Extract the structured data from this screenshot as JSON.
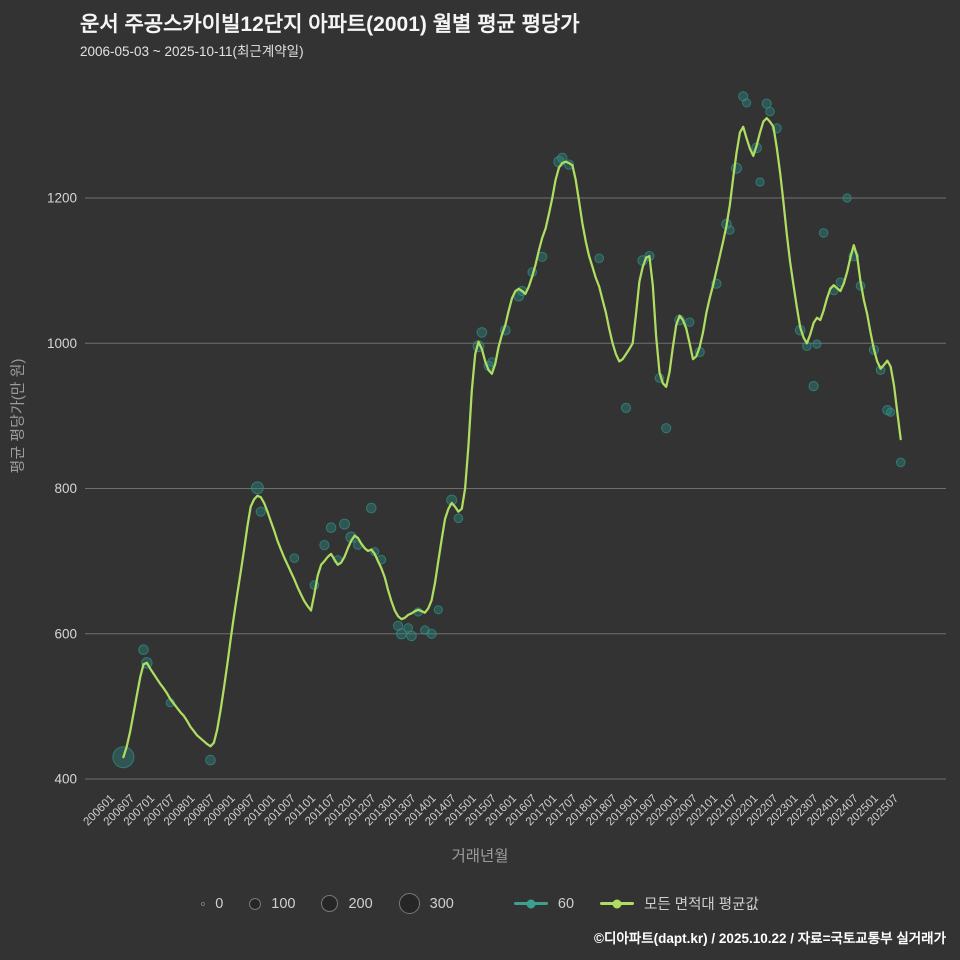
{
  "header": {
    "title": "운서 주공스카이빌12단지 아파트(2001) 월별 평균 평당가",
    "subtitle": "2006-05-03 ~ 2025-10-11(최근계약일)"
  },
  "footer": {
    "credit": "©디아파트(dapt.kr) / 2025.10.22 / 자료=국토교통부 실거래가"
  },
  "legend": {
    "size_items": [
      {
        "label": "0"
      },
      {
        "label": "100"
      },
      {
        "label": "200"
      },
      {
        "label": "300"
      }
    ],
    "series_items": [
      {
        "label": "60",
        "color": "#3aa08f"
      },
      {
        "label": "모든 면적대 평균값",
        "color": "#afdd61"
      }
    ]
  },
  "chart_data": {
    "type": "line",
    "title": "운서 주공스카이빌12단지 아파트(2001) 월별 평균 평당가",
    "subtitle": "2006-05-03 ~ 2025-10-11(최근계약일)",
    "x_axis": {
      "label": "거래년월",
      "ticks": [
        "200601",
        "200607",
        "200701",
        "200707",
        "200801",
        "200807",
        "200901",
        "200907",
        "201001",
        "201007",
        "201101",
        "201107",
        "201201",
        "201207",
        "201301",
        "201307",
        "201401",
        "201407",
        "201501",
        "201507",
        "201601",
        "201607",
        "201701",
        "201707",
        "201801",
        "201807",
        "201901",
        "201907",
        "202001",
        "202007",
        "202101",
        "202107",
        "202201",
        "202207",
        "202301",
        "202307",
        "202401",
        "202407",
        "202501",
        "202507"
      ]
    },
    "y_axis": {
      "label": "평균 평당가(만 원)",
      "ticks": [
        400,
        600,
        800,
        1000,
        1200
      ],
      "range": [
        400,
        1360
      ]
    },
    "size_legend_values": [
      0,
      100,
      200,
      300
    ],
    "series": [
      {
        "name": "모든 면적대 평균값",
        "type": "line",
        "color": "#afdd61",
        "start_month": "200605",
        "values": [
          430,
          445,
          465,
          490,
          515,
          540,
          558,
          560,
          552,
          545,
          538,
          531,
          525,
          518,
          510,
          504,
          498,
          492,
          487,
          480,
          472,
          466,
          460,
          456,
          452,
          448,
          445,
          450,
          468,
          495,
          525,
          558,
          592,
          625,
          655,
          685,
          715,
          748,
          775,
          785,
          790,
          788,
          780,
          768,
          755,
          742,
          728,
          716,
          705,
          695,
          685,
          675,
          664,
          654,
          645,
          638,
          632,
          655,
          680,
          695,
          700,
          706,
          710,
          702,
          695,
          698,
          706,
          718,
          728,
          735,
          732,
          724,
          718,
          714,
          716,
          710,
          700,
          690,
          678,
          660,
          645,
          632,
          624,
          620,
          622,
          626,
          628,
          631,
          633,
          631,
          629,
          635,
          646,
          670,
          700,
          730,
          758,
          772,
          780,
          775,
          768,
          772,
          800,
          860,
          935,
          985,
          1002,
          992,
          975,
          963,
          958,
          972,
          995,
          1012,
          1025,
          1045,
          1062,
          1072,
          1075,
          1072,
          1068,
          1078,
          1092,
          1108,
          1128,
          1145,
          1158,
          1178,
          1200,
          1225,
          1242,
          1248,
          1250,
          1248,
          1245,
          1225,
          1195,
          1165,
          1140,
          1120,
          1105,
          1090,
          1078,
          1060,
          1042,
          1020,
          1000,
          985,
          975,
          978,
          985,
          992,
          1000,
          1040,
          1085,
          1105,
          1118,
          1120,
          1080,
          1010,
          960,
          945,
          940,
          960,
          995,
          1025,
          1038,
          1032,
          1020,
          1000,
          978,
          982,
          995,
          1015,
          1042,
          1062,
          1080,
          1100,
          1120,
          1140,
          1162,
          1190,
          1228,
          1262,
          1290,
          1298,
          1282,
          1268,
          1258,
          1272,
          1290,
          1305,
          1310,
          1305,
          1298,
          1270,
          1235,
          1195,
          1150,
          1112,
          1080,
          1050,
          1022,
          1008,
          1000,
          1012,
          1028,
          1035,
          1032,
          1045,
          1062,
          1075,
          1080,
          1076,
          1072,
          1082,
          1098,
          1118,
          1135,
          1120,
          1085,
          1060,
          1040,
          1015,
          992,
          975,
          965,
          970,
          976,
          968,
          942,
          905,
          868
        ]
      },
      {
        "name": "60",
        "type": "scatter",
        "color": "#2f8f85",
        "points": [
          [
            "200605",
            430,
            300
          ],
          [
            "200611",
            578,
            30
          ],
          [
            "200612",
            560,
            40
          ],
          [
            "200707",
            505,
            15
          ],
          [
            "200807",
            426,
            30
          ],
          [
            "200909",
            801,
            60
          ],
          [
            "200910",
            768,
            25
          ],
          [
            "201008",
            704,
            20
          ],
          [
            "201102",
            667,
            20
          ],
          [
            "201105",
            722,
            25
          ],
          [
            "201107",
            746,
            30
          ],
          [
            "201109",
            702,
            15
          ],
          [
            "201111",
            751,
            35
          ],
          [
            "201201",
            733,
            40
          ],
          [
            "201203",
            722,
            20
          ],
          [
            "201207",
            773,
            30
          ],
          [
            "201208",
            713,
            15
          ],
          [
            "201210",
            702,
            20
          ],
          [
            "201303",
            611,
            25
          ],
          [
            "201304",
            600,
            35
          ],
          [
            "201306",
            608,
            20
          ],
          [
            "201307",
            597,
            30
          ],
          [
            "201309",
            630,
            15
          ],
          [
            "201311",
            605,
            20
          ],
          [
            "201401",
            600,
            25
          ],
          [
            "201403",
            633,
            15
          ],
          [
            "201407",
            784,
            35
          ],
          [
            "201409",
            759,
            20
          ],
          [
            "201503",
            996,
            45
          ],
          [
            "201504",
            1015,
            30
          ],
          [
            "201506",
            969,
            25
          ],
          [
            "201507",
            974,
            20
          ],
          [
            "201511",
            1018,
            30
          ],
          [
            "201603",
            1065,
            35
          ],
          [
            "201604",
            1072,
            25
          ],
          [
            "201607",
            1098,
            20
          ],
          [
            "201610",
            1119,
            25
          ],
          [
            "201703",
            1250,
            40
          ],
          [
            "201704",
            1255,
            30
          ],
          [
            "201706",
            1246,
            25
          ],
          [
            "201803",
            1117,
            20
          ],
          [
            "201811",
            911,
            25
          ],
          [
            "201904",
            1114,
            30
          ],
          [
            "201906",
            1120,
            25
          ],
          [
            "201909",
            952,
            20
          ],
          [
            "201911",
            883,
            25
          ],
          [
            "202003",
            1032,
            30
          ],
          [
            "202006",
            1029,
            20
          ],
          [
            "202009",
            988,
            25
          ],
          [
            "202102",
            1082,
            25
          ],
          [
            "202105",
            1164,
            30
          ],
          [
            "202106",
            1156,
            20
          ],
          [
            "202108",
            1241,
            35
          ],
          [
            "202110",
            1340,
            25
          ],
          [
            "202111",
            1331,
            15
          ],
          [
            "202202",
            1269,
            30
          ],
          [
            "202203",
            1222,
            15
          ],
          [
            "202205",
            1330,
            25
          ],
          [
            "202206",
            1319,
            20
          ],
          [
            "202208",
            1296,
            25
          ],
          [
            "202303",
            1018,
            30
          ],
          [
            "202305",
            996,
            20
          ],
          [
            "202307",
            941,
            25
          ],
          [
            "202308",
            999,
            15
          ],
          [
            "202310",
            1152,
            20
          ],
          [
            "202401",
            1073,
            25
          ],
          [
            "202403",
            1084,
            20
          ],
          [
            "202405",
            1200,
            15
          ],
          [
            "202407",
            1120,
            30
          ],
          [
            "202409",
            1079,
            20
          ],
          [
            "202501",
            991,
            25
          ],
          [
            "202503",
            963,
            20
          ],
          [
            "202505",
            908,
            25
          ],
          [
            "202506",
            905,
            15
          ],
          [
            "202509",
            836,
            20
          ]
        ]
      }
    ]
  }
}
